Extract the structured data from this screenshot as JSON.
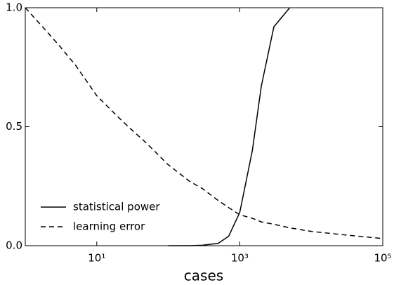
{
  "chart_data": {
    "type": "line",
    "xlabel": "cases",
    "xscale": "log",
    "x": [
      1,
      2,
      3,
      5,
      10,
      20,
      30,
      50,
      100,
      200,
      300,
      500,
      700,
      1000,
      1500,
      2000,
      3000,
      5000,
      10000,
      30000,
      100000
    ],
    "series": [
      {
        "name": "statistical power",
        "color": "#000000",
        "dash": "solid",
        "values": [
          null,
          null,
          null,
          null,
          null,
          null,
          null,
          null,
          0,
          0,
          0.002,
          0.01,
          0.04,
          0.14,
          0.4,
          0.67,
          0.92,
          1.0,
          null,
          null,
          null
        ]
      },
      {
        "name": "learning error",
        "color": "#000000",
        "dash": "dashed",
        "values": [
          1.0,
          0.9,
          0.84,
          0.76,
          0.63,
          0.54,
          0.49,
          0.43,
          0.34,
          0.27,
          0.24,
          0.19,
          0.16,
          0.13,
          0.115,
          0.1,
          0.09,
          0.075,
          0.06,
          0.045,
          0.03
        ]
      }
    ],
    "xlim": [
      1,
      100000
    ],
    "xticks": [
      {
        "value": 10,
        "label": "10¹"
      },
      {
        "value": 1000,
        "label": "10³"
      },
      {
        "value": 100000,
        "label": "10⁵"
      }
    ],
    "ylim": [
      0,
      1
    ],
    "yticks": [
      {
        "value": 0,
        "label": "0.0"
      },
      0.5,
      {
        "value": 1,
        "label": "1.0"
      }
    ],
    "legend": "lower left"
  }
}
